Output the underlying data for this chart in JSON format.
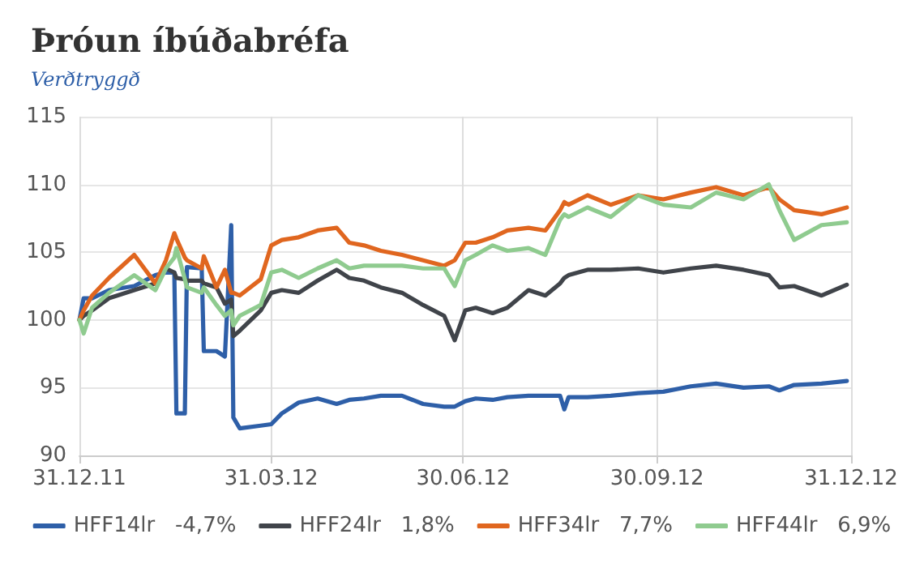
{
  "chart_data": {
    "type": "line",
    "title": "Þróun íbúðabréfa",
    "subtitle": "Verðtryggð",
    "x": [
      "2011-12-31",
      "2012-01-02",
      "2012-01-06",
      "2012-01-14",
      "2012-01-26",
      "2012-02-05",
      "2012-02-10",
      "2012-02-14",
      "2012-02-15",
      "2012-02-19",
      "2012-02-20",
      "2012-02-27",
      "2012-02-28",
      "2012-03-05",
      "2012-03-09",
      "2012-03-12",
      "2012-03-13",
      "2012-03-16",
      "2012-03-26",
      "2012-03-31",
      "2012-04-05",
      "2012-04-13",
      "2012-04-22",
      "2012-05-01",
      "2012-05-07",
      "2012-05-14",
      "2012-05-22",
      "2012-06-01",
      "2012-06-11",
      "2012-06-21",
      "2012-06-26",
      "2012-07-01",
      "2012-07-06",
      "2012-07-14",
      "2012-07-21",
      "2012-07-31",
      "2012-08-08",
      "2012-08-15",
      "2012-08-17",
      "2012-08-19",
      "2012-08-28",
      "2012-09-08",
      "2012-09-21",
      "2012-10-03",
      "2012-10-16",
      "2012-10-28",
      "2012-11-10",
      "2012-11-22",
      "2012-11-27",
      "2012-12-04",
      "2012-12-17",
      "2012-12-29"
    ],
    "series": [
      {
        "name": "HFF14lr   -4,7%",
        "color": "#2e5fa8",
        "values": [
          100,
          101.6,
          101.6,
          102.2,
          102.5,
          103.3,
          103.5,
          103.5,
          93.1,
          93.1,
          103.9,
          103.8,
          97.7,
          97.7,
          97.3,
          107,
          92.8,
          92,
          92.2,
          92.3,
          93.1,
          93.9,
          94.2,
          93.8,
          94.1,
          94.2,
          94.4,
          94.4,
          93.8,
          93.6,
          93.6,
          94,
          94.2,
          94.1,
          94.3,
          94.4,
          94.4,
          94.4,
          93.4,
          94.3,
          94.3,
          94.4,
          94.6,
          94.7,
          95.1,
          95.3,
          95,
          95.1,
          94.8,
          95.2,
          95.3,
          95.5
        ]
      },
      {
        "name": "HFF24lr   1,8%",
        "color": "#40444a",
        "values": [
          100,
          100.3,
          100.7,
          101.6,
          102.2,
          102.7,
          103.8,
          103.5,
          103.1,
          103,
          102.9,
          102.9,
          102.7,
          102.4,
          101.2,
          101.5,
          98.8,
          99.2,
          100.7,
          102,
          102.2,
          102,
          102.9,
          103.7,
          103.1,
          102.9,
          102.4,
          102,
          101.1,
          100.3,
          98.5,
          100.7,
          100.9,
          100.5,
          100.9,
          102.2,
          101.8,
          102.7,
          103.1,
          103.3,
          103.7,
          103.7,
          103.8,
          103.5,
          103.8,
          104,
          103.7,
          103.3,
          102.4,
          102.5,
          101.8,
          102.6
        ]
      },
      {
        "name": "HFF34lr   7,7%",
        "color": "#e0661f",
        "values": [
          100,
          100.7,
          101.8,
          103.1,
          104.8,
          102.7,
          104.4,
          106.4,
          106,
          104.6,
          104.4,
          103.8,
          104.7,
          102.4,
          103.7,
          102,
          102,
          101.8,
          103,
          105.5,
          105.9,
          106.1,
          106.6,
          106.8,
          105.7,
          105.5,
          105.1,
          104.8,
          104.4,
          104,
          104.4,
          105.7,
          105.7,
          106.1,
          106.6,
          106.8,
          106.6,
          108.1,
          108.7,
          108.5,
          109.2,
          108.5,
          109.2,
          108.9,
          109.4,
          109.8,
          109.2,
          109.8,
          108.9,
          108.1,
          107.8,
          108.3
        ]
      },
      {
        "name": "HFF44lr   6,9%",
        "color": "#8fcb8f",
        "values": [
          100,
          99,
          100.9,
          102,
          103.3,
          102.2,
          103.8,
          104.6,
          105.3,
          103,
          102.4,
          102,
          102.4,
          101.1,
          100.3,
          100.7,
          99.6,
          100.3,
          101.1,
          103.5,
          103.7,
          103.1,
          103.8,
          104.4,
          103.8,
          104,
          104,
          104,
          103.8,
          103.8,
          102.5,
          104.4,
          104.8,
          105.5,
          105.1,
          105.3,
          104.8,
          107.4,
          107.8,
          107.6,
          108.3,
          107.6,
          109.2,
          108.5,
          108.3,
          109.4,
          108.9,
          110,
          108.1,
          105.9,
          107,
          107.2
        ]
      }
    ],
    "xlim": [
      "2011-12-31",
      "2012-12-31"
    ],
    "xticks": [
      {
        "value": "2011-12-31",
        "label": "31.12.11"
      },
      {
        "value": "2012-03-31",
        "label": "31.03.12"
      },
      {
        "value": "2012-06-30",
        "label": "30.06.12"
      },
      {
        "value": "2012-09-30",
        "label": "30.09.12"
      },
      {
        "value": "2012-12-31",
        "label": "31.12.12"
      }
    ],
    "ylim": [
      90,
      115
    ],
    "yticks": [
      90,
      95,
      100,
      105,
      110,
      115
    ],
    "grid": true,
    "legend": "bottom"
  }
}
